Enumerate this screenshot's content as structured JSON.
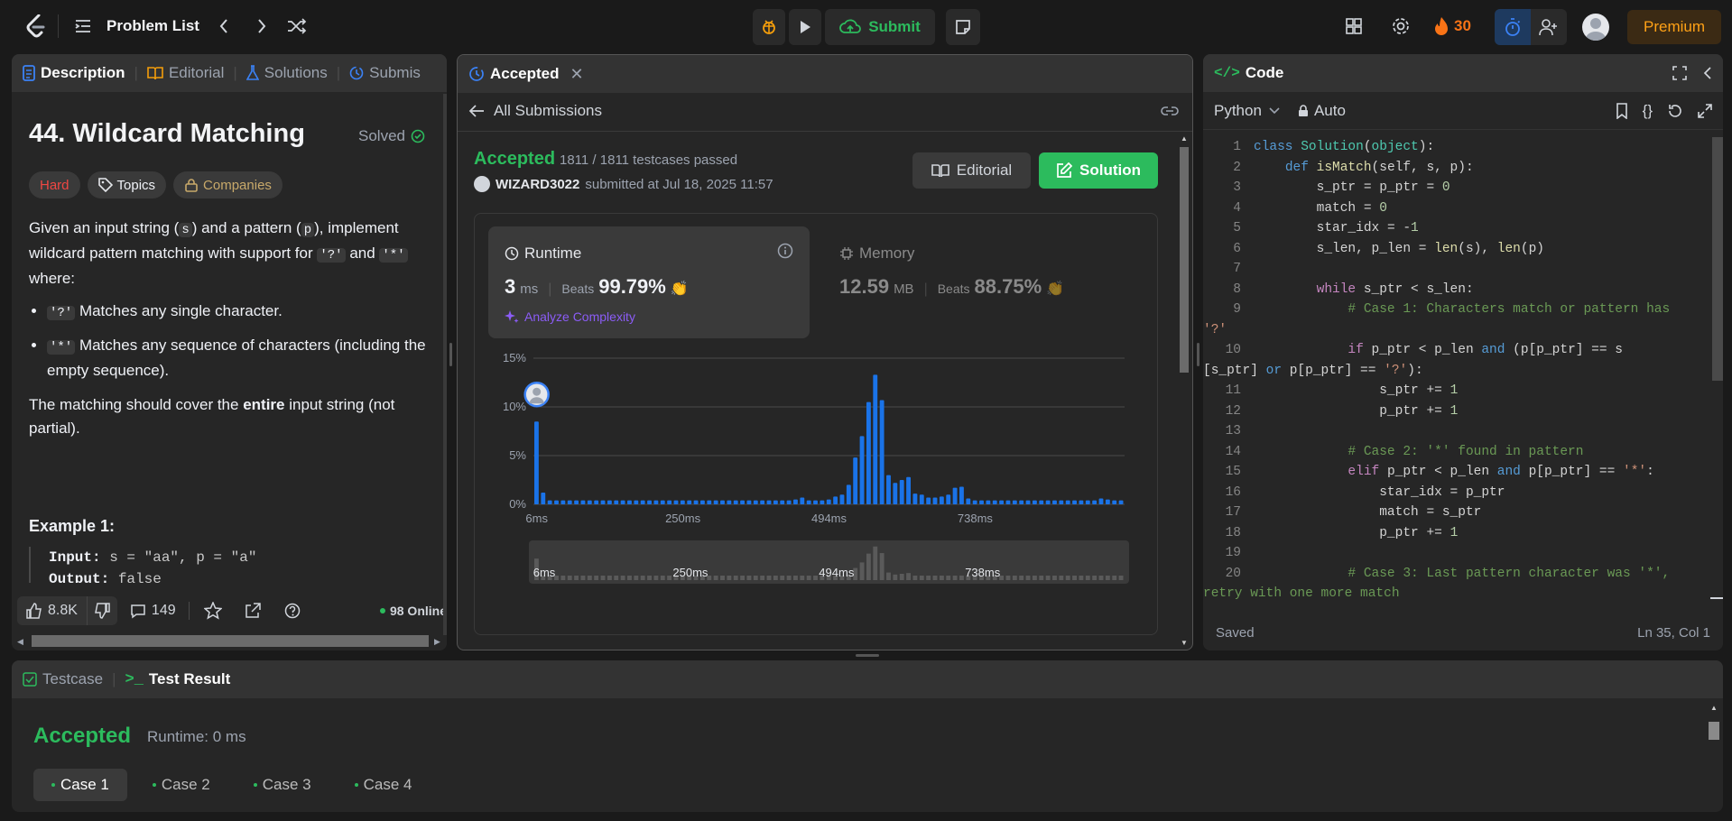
{
  "topbar": {
    "problem_list": "Problem List",
    "submit": "Submit",
    "streak": "30",
    "premium": "Premium"
  },
  "left": {
    "tabs": [
      "Description",
      "Editorial",
      "Solutions",
      "Submis"
    ],
    "title": "44. Wildcard Matching",
    "solved": "Solved",
    "tags": {
      "hard": "Hard",
      "topics": "Topics",
      "companies": "Companies"
    },
    "p1_a": "Given an input string (",
    "p1_s": "s",
    "p1_b": ") and a pattern (",
    "p1_p": "p",
    "p1_c": "), implement wildcard pattern matching with support for ",
    "p1_q": "'?'",
    "p1_d": " and ",
    "p1_star": "'*'",
    "p1_e": " where:",
    "b1_code": "'?'",
    "b1_text": " Matches any single character.",
    "b2_code": "'*'",
    "b2_text": " Matches any sequence of characters (including the empty sequence).",
    "p2_a": "The matching should cover the ",
    "p2_b": "entire",
    "p2_c": " input string (not partial).",
    "example_title": "Example 1:",
    "ex_input_label": "Input:",
    "ex_input_val": " s = \"aa\", p = \"a\"",
    "ex_output_label": "Output:",
    "ex_output_val": " false",
    "likes": "8.8K",
    "comments": "149",
    "online": "98 Online"
  },
  "middle": {
    "tab": "Accepted",
    "all_submissions": "All Submissions",
    "status": "Accepted",
    "testcases": "1811 / 1811 testcases passed",
    "user": "WIZARD3022",
    "submitted": "submitted at Jul 18, 2025 11:57",
    "editorial_btn": "Editorial",
    "solution_btn": "Solution",
    "runtime": {
      "label": "Runtime",
      "value": "3",
      "unit": "ms",
      "beats": "Beats",
      "pct": "99.79%",
      "analyze": "Analyze Complexity"
    },
    "memory": {
      "label": "Memory",
      "value": "12.59",
      "unit": "MB",
      "beats": "Beats",
      "pct": "88.75%"
    }
  },
  "chart_data": {
    "type": "bar",
    "ylabel_ticks": [
      "15%",
      "10%",
      "5%",
      "0%"
    ],
    "xticks": [
      "6ms",
      "250ms",
      "494ms",
      "738ms"
    ],
    "ylim": [
      0,
      15
    ],
    "values": [
      8.5,
      1.2,
      0.4,
      0.4,
      0.4,
      0.4,
      0.4,
      0.4,
      0.4,
      0.4,
      0.4,
      0.4,
      0.4,
      0.4,
      0.4,
      0.4,
      0.4,
      0.4,
      0.4,
      0.4,
      0.4,
      0.4,
      0.4,
      0.4,
      0.4,
      0.4,
      0.4,
      0.4,
      0.4,
      0.4,
      0.4,
      0.4,
      0.4,
      0.4,
      0.4,
      0.4,
      0.4,
      0.4,
      0.4,
      0.5,
      0.7,
      0.4,
      0.4,
      0.4,
      0.5,
      0.8,
      1.0,
      2.0,
      4.8,
      7.0,
      10.5,
      13.3,
      10.7,
      3.0,
      2.2,
      2.5,
      2.8,
      1.1,
      1.0,
      0.7,
      0.7,
      0.8,
      1.0,
      1.7,
      1.8,
      0.6,
      0.4,
      0.4,
      0.4,
      0.4,
      0.4,
      0.4,
      0.4,
      0.4,
      0.4,
      0.4,
      0.4,
      0.4,
      0.4,
      0.4,
      0.4,
      0.4,
      0.4,
      0.4,
      0.4,
      0.6,
      0.5,
      0.4,
      0.4
    ],
    "mini_xticks": [
      "6ms",
      "250ms",
      "494ms",
      "738ms"
    ],
    "grid": true,
    "color": "#1a73e8"
  },
  "right": {
    "tab": "Code",
    "language": "Python",
    "auto": "Auto",
    "saved": "Saved",
    "position": "Ln 35, Col 1",
    "line_numbers": [
      "1",
      "2",
      "3",
      "4",
      "5",
      "6",
      "7",
      "8",
      "9",
      "",
      "10",
      "",
      "11",
      "12",
      "13",
      "14",
      "15",
      "16",
      "17",
      "18",
      "19",
      "20"
    ]
  },
  "bottom": {
    "tab_testcase": "Testcase",
    "tab_result": "Test Result",
    "status": "Accepted",
    "runtime": "Runtime: 0 ms",
    "cases": [
      "Case 1",
      "Case 2",
      "Case 3",
      "Case 4"
    ]
  }
}
